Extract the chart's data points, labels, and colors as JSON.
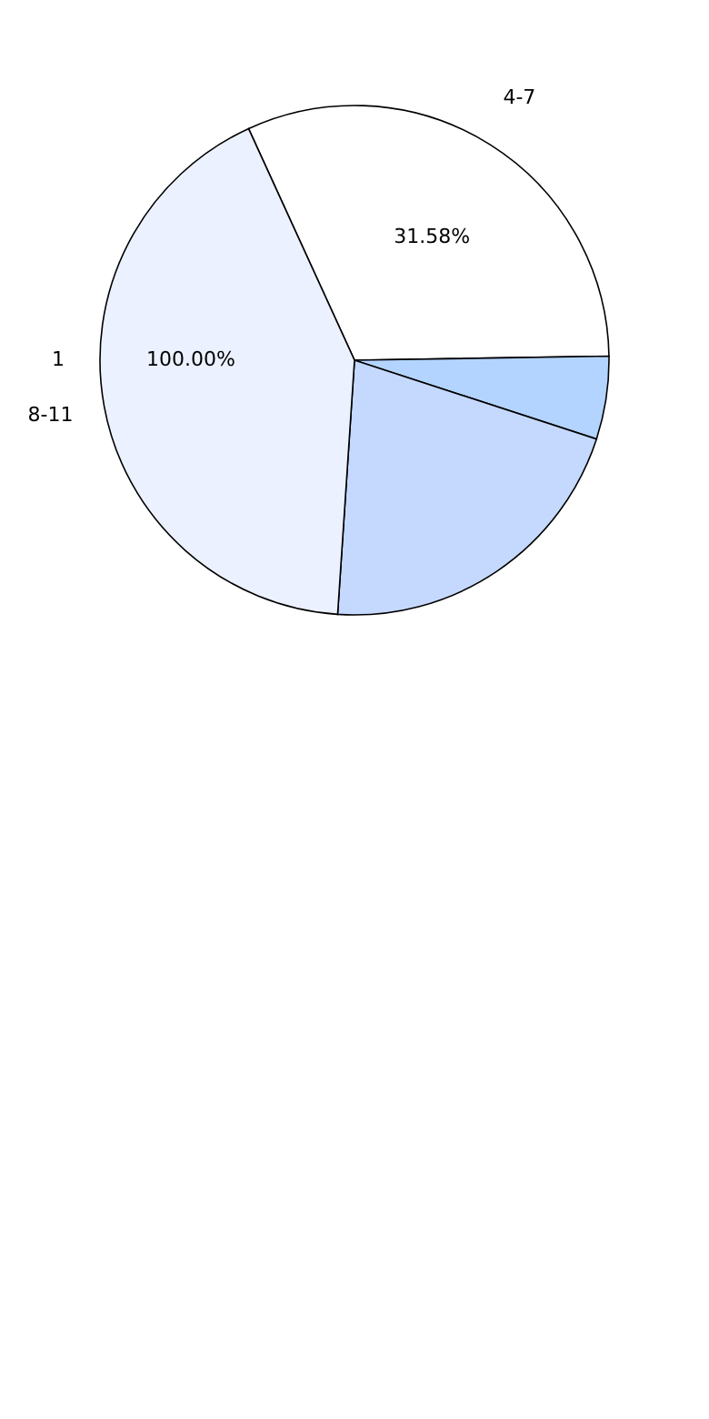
{
  "chart_data": {
    "type": "pie",
    "categories": [
      "4-7",
      null,
      null,
      "8-11"
    ],
    "values": [
      31.58,
      5.26,
      21.05,
      42.11
    ],
    "colors": [
      "#ffffff",
      "#b3d4ff",
      "#c5d9ff",
      "#ebf1ff"
    ],
    "value_labels": [
      "31.58%",
      null,
      null,
      null
    ],
    "annotations": [
      "1",
      "100.00%"
    ]
  }
}
